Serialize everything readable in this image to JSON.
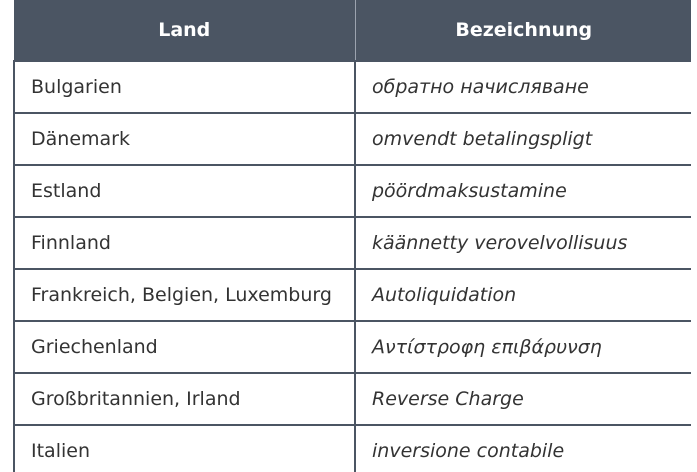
{
  "headers": {
    "country": "Land",
    "term": "Bezeichnung"
  },
  "rows": [
    {
      "country": "Bulgarien",
      "term": "обратно начисляване"
    },
    {
      "country": "Dänemark",
      "term": "omvendt betalingspligt"
    },
    {
      "country": "Estland",
      "term": "pöördmaksustamine"
    },
    {
      "country": "Finnland",
      "term": "käännetty verovelvollisuus"
    },
    {
      "country": "Frankreich, Belgien, Luxemburg",
      "term": "Autoliquidation"
    },
    {
      "country": "Griechenland",
      "term": "Αντίστροφη επιβάρυνση"
    },
    {
      "country": "Großbritannien, Irland",
      "term": "Reverse Charge"
    },
    {
      "country": "Italien",
      "term": "inversione contabile"
    }
  ]
}
